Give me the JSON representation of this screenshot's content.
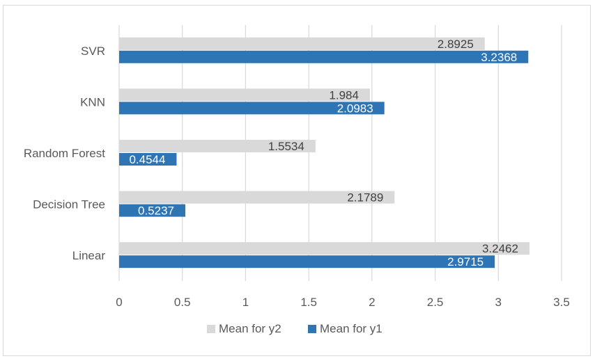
{
  "chart_data": {
    "type": "bar",
    "orientation": "horizontal",
    "categories": [
      "SVR",
      "KNN",
      "Random Forest",
      "Decision Tree",
      "Linear"
    ],
    "series": [
      {
        "name": "Mean for y2",
        "values": [
          2.8925,
          1.984,
          1.5534,
          2.1789,
          3.2462
        ],
        "color": "#d9d9d9",
        "label_color": "#404040"
      },
      {
        "name": "Mean for y1",
        "values": [
          3.2368,
          2.0983,
          0.4544,
          0.5237,
          2.9715
        ],
        "color": "#2e75b6",
        "label_color": "#ffffff"
      }
    ],
    "data_labels": [
      [
        "2.8925",
        "1.984",
        "1.5534",
        "2.1789",
        "3.2462"
      ],
      [
        "3.2368",
        "2.0983",
        "0.4544",
        "0.5237",
        "2.9715"
      ]
    ],
    "xlim": [
      0,
      3.5
    ],
    "xticks": [
      "0",
      "0.5",
      "1",
      "1.5",
      "2",
      "2.5",
      "3",
      "3.5"
    ],
    "grid": true,
    "legend_position": "bottom",
    "title": "",
    "xlabel": "",
    "ylabel": ""
  }
}
